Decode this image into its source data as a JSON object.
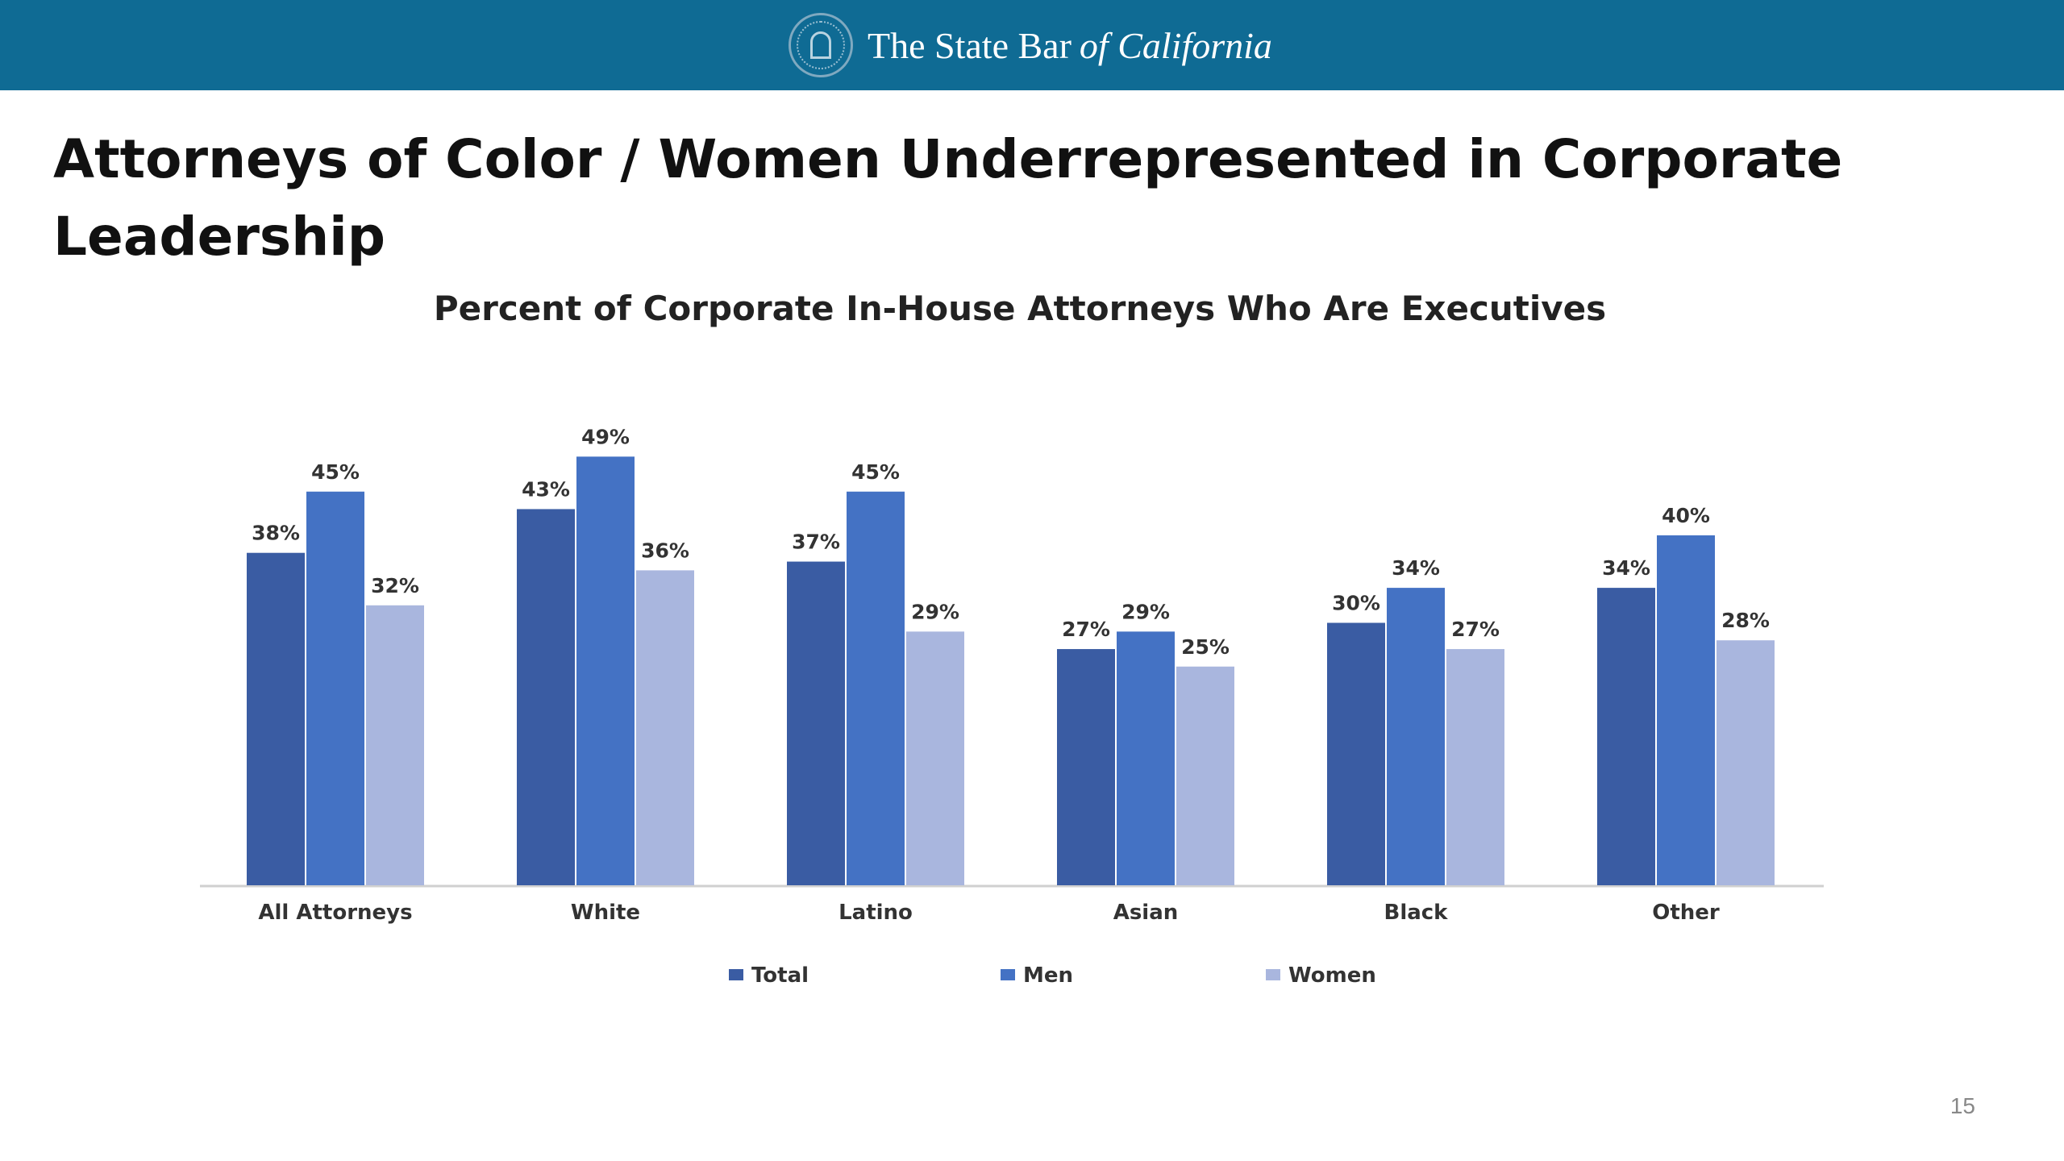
{
  "header": {
    "brand_name": "The State Bar",
    "brand_suffix": "of California",
    "seal_icon": "state-bar-seal-icon",
    "background_color": "#0f6b94"
  },
  "slide": {
    "title": "Attorneys of Color / Women Underrepresented in Corporate Leadership",
    "page_number": "15"
  },
  "chart_data": {
    "type": "bar",
    "title": "Percent of Corporate In-House Attorneys Who Are Executives",
    "categories": [
      "All Attorneys",
      "White",
      "Latino",
      "Asian",
      "Black",
      "Other"
    ],
    "series": [
      {
        "name": "Total",
        "color": "#3a5ca3",
        "values": [
          38,
          43,
          37,
          27,
          30,
          34
        ],
        "labels": [
          "38%",
          "43%",
          "37%",
          "27%",
          "30%",
          "34%"
        ]
      },
      {
        "name": "Men",
        "color": "#4472c4",
        "values": [
          45,
          49,
          45,
          29,
          34,
          40
        ],
        "labels": [
          "45%",
          "49%",
          "45%",
          "29%",
          "34%",
          "40%"
        ]
      },
      {
        "name": "Women",
        "color": "#a9b6de",
        "values": [
          32,
          36,
          29,
          25,
          27,
          28
        ],
        "labels": [
          "32%",
          "36%",
          "29%",
          "25%",
          "27%",
          "28%"
        ]
      }
    ],
    "ylim": [
      0,
      50
    ],
    "grid": false,
    "legend_position": "bottom"
  }
}
